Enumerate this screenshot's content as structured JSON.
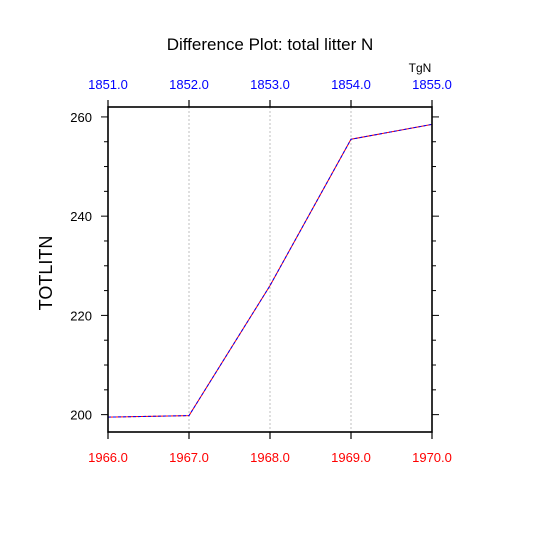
{
  "chart_data": {
    "type": "line",
    "title": "Difference Plot: total litter N",
    "ylabel": "TOTLITN",
    "top_axis_label": "TgN",
    "x_bottom": [
      1966.0,
      1967.0,
      1968.0,
      1969.0,
      1970.0
    ],
    "x_bottom_labels": [
      "1966.0",
      "1967.0",
      "1968.0",
      "1969.0",
      "1970.0"
    ],
    "x_top_labels": [
      "1851.0",
      "1852.0",
      "1853.0",
      "1854.0",
      "1855.0"
    ],
    "xlim": [
      1966.0,
      1970.0
    ],
    "ylim": [
      196.5,
      262
    ],
    "y_ticks": [
      200,
      220,
      240,
      260
    ],
    "y_tick_labels": [
      "200",
      "220",
      "240",
      "260"
    ],
    "y_minor_step": 5,
    "grid": "vertical dashed at x ticks",
    "series": [
      {
        "values": [
          199.5,
          199.8,
          226.0,
          255.5,
          258.5
        ],
        "color": "#ff0000",
        "style": "solid"
      },
      {
        "values": [
          199.5,
          199.8,
          226.0,
          255.5,
          258.5
        ],
        "color": "#0000ff",
        "style": "dashed"
      }
    ],
    "colors": {
      "bottom_tick_labels": "#ff0000",
      "top_tick_labels": "#0000ff",
      "axis": "#000000",
      "grid": "#b0b0b0"
    }
  }
}
